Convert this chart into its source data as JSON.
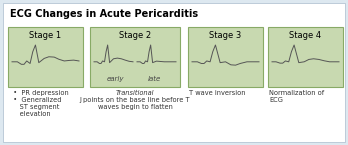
{
  "title": "ECG Changes in Acute Pericarditis",
  "title_fontsize": 7.0,
  "background_color": "#ffffff",
  "outer_bg": "#dde8f0",
  "box_color": "#c8d9b0",
  "box_edge_color": "#88aa66",
  "stages": [
    "Stage 1",
    "Stage 2",
    "Stage 3",
    "Stage 4"
  ],
  "descriptions": [
    "  •  PR depression\n  •  Generalized\n     ST segment\n     elevation",
    "Transitional\nJ points on the base line before T\nwaves begin to flatten",
    "T wave inversion",
    "Normalization of\nECG"
  ],
  "ecg_line_color": "#555555",
  "label_color": "#333333",
  "desc_fontsize": 4.8,
  "stage_fontsize": 6.0,
  "early_late_fontsize": 5.0
}
